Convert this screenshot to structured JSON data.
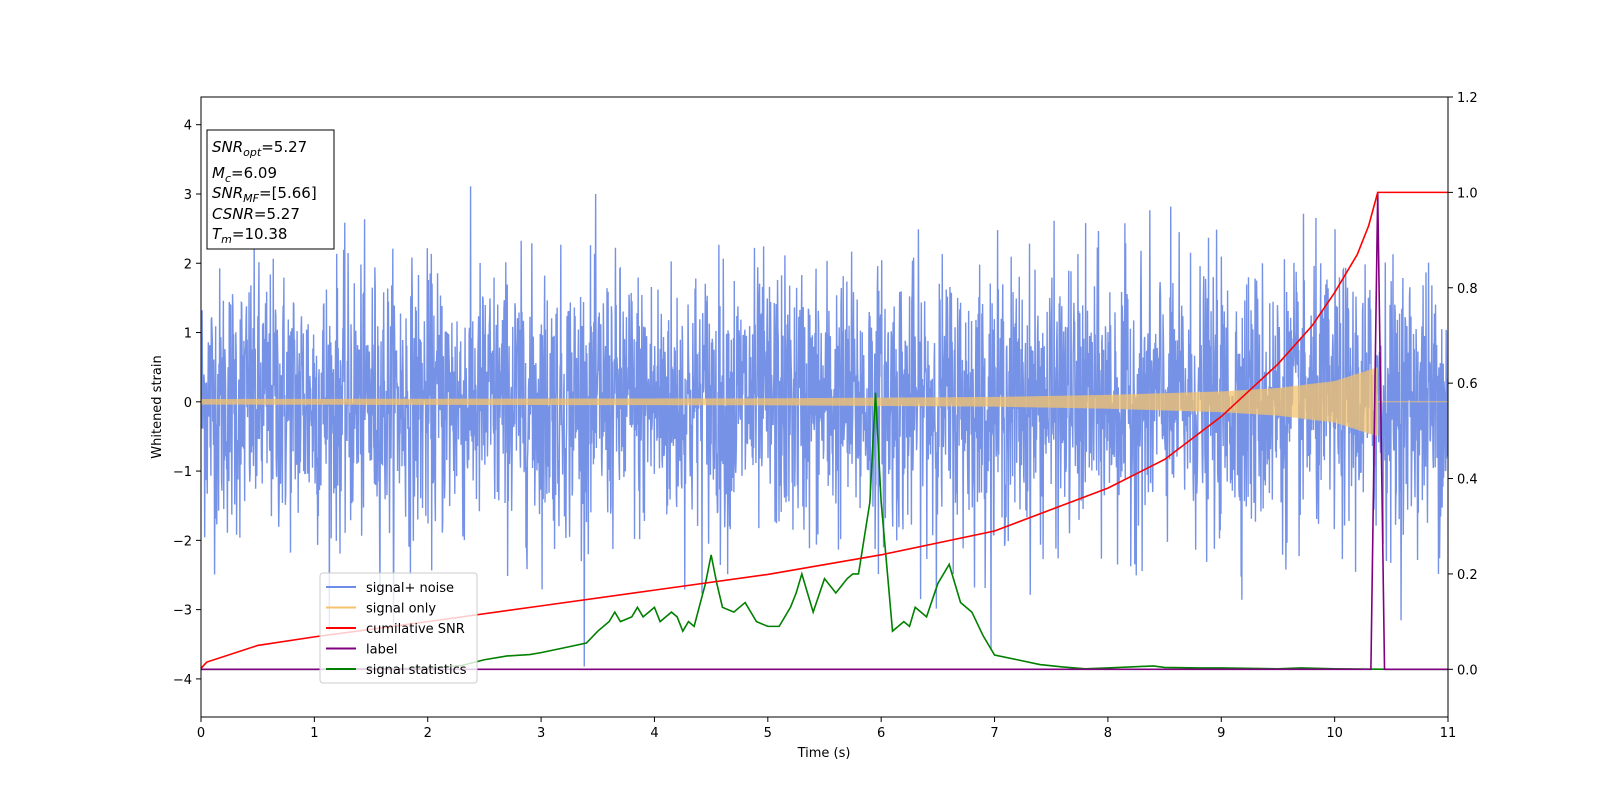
{
  "chart_data": {
    "type": "line",
    "xlabel": "Time (s)",
    "ylabel": "Whitened strain",
    "xlim": [
      0,
      11
    ],
    "ylim": [
      -4.55,
      4.4
    ],
    "y2lim": [
      -0.1,
      1.2
    ],
    "x_ticks": [
      0,
      1,
      2,
      3,
      4,
      5,
      6,
      7,
      8,
      9,
      10,
      11
    ],
    "y_ticks": [
      -4,
      -3,
      -2,
      -1,
      0,
      1,
      2,
      3,
      4
    ],
    "y2_ticks": [
      0.0,
      0.2,
      0.4,
      0.6,
      0.8,
      1.0,
      1.2
    ],
    "legend_position": "lower-left",
    "grid": false,
    "annotation": {
      "snr_opt": "5.27",
      "mc": "6.09",
      "snr_mf": "[5.66]",
      "csnr": "5.27",
      "tm": "10.38"
    },
    "series": [
      {
        "name": "signal+ noise",
        "color": "#6f8ce6",
        "axis": "left",
        "noise_std": 0.95,
        "x_range": [
          0,
          11
        ]
      },
      {
        "name": "signal only",
        "color": "#f5c36b",
        "axis": "left",
        "merger_time": 10.38,
        "envelope": [
          [
            0,
            0.04
          ],
          [
            5,
            0.05
          ],
          [
            7,
            0.07
          ],
          [
            8,
            0.1
          ],
          [
            9,
            0.15
          ],
          [
            9.5,
            0.2
          ],
          [
            10,
            0.3
          ],
          [
            10.38,
            0.5
          ]
        ]
      },
      {
        "name": "cumilative SNR",
        "color": "#ff0000",
        "axis": "right",
        "x": [
          0,
          0.05,
          0.5,
          1,
          2,
          3,
          4,
          5,
          6,
          7,
          8,
          8.5,
          9,
          9.5,
          9.8,
          10,
          10.2,
          10.3,
          10.38,
          10.5,
          11
        ],
        "y": [
          0.002,
          0.015,
          0.05,
          0.068,
          0.1,
          0.133,
          0.166,
          0.199,
          0.24,
          0.29,
          0.38,
          0.44,
          0.53,
          0.64,
          0.72,
          0.79,
          0.87,
          0.93,
          1.0,
          1.0,
          1.0
        ]
      },
      {
        "name": "label",
        "color": "#800080",
        "axis": "right",
        "x": [
          0,
          10.32,
          10.38,
          10.44,
          11
        ],
        "y": [
          0,
          0,
          1.0,
          0,
          0
        ]
      },
      {
        "name": "signal statistics",
        "color": "#008000",
        "axis": "right",
        "x": [
          0,
          0.5,
          1,
          1.5,
          2,
          2.3,
          2.5,
          2.7,
          2.9,
          3.0,
          3.2,
          3.4,
          3.5,
          3.6,
          3.65,
          3.7,
          3.8,
          3.85,
          3.9,
          3.95,
          4.0,
          4.05,
          4.1,
          4.15,
          4.2,
          4.25,
          4.3,
          4.35,
          4.45,
          4.5,
          4.55,
          4.6,
          4.7,
          4.75,
          4.8,
          4.9,
          5.0,
          5.1,
          5.2,
          5.25,
          5.3,
          5.35,
          5.4,
          5.5,
          5.6,
          5.7,
          5.75,
          5.8,
          5.9,
          5.95,
          6.0,
          6.1,
          6.2,
          6.25,
          6.3,
          6.4,
          6.5,
          6.6,
          6.65,
          6.7,
          6.8,
          6.9,
          7.0,
          7.2,
          7.4,
          7.6,
          7.8,
          8.0,
          8.2,
          8.4,
          8.5,
          8.8,
          9.0,
          9.5,
          9.7,
          10.0,
          10.5,
          11.0
        ],
        "y": [
          0.0,
          0.0,
          0.0,
          0.001,
          0.002,
          0.008,
          0.02,
          0.028,
          0.031,
          0.035,
          0.045,
          0.055,
          0.08,
          0.1,
          0.12,
          0.1,
          0.11,
          0.13,
          0.11,
          0.12,
          0.13,
          0.1,
          0.11,
          0.12,
          0.11,
          0.08,
          0.1,
          0.09,
          0.18,
          0.24,
          0.18,
          0.13,
          0.12,
          0.13,
          0.14,
          0.1,
          0.09,
          0.09,
          0.13,
          0.16,
          0.2,
          0.16,
          0.12,
          0.19,
          0.16,
          0.19,
          0.2,
          0.2,
          0.35,
          0.58,
          0.35,
          0.08,
          0.1,
          0.09,
          0.13,
          0.11,
          0.18,
          0.22,
          0.18,
          0.14,
          0.12,
          0.07,
          0.03,
          0.02,
          0.01,
          0.005,
          0.001,
          0.003,
          0.005,
          0.007,
          0.004,
          0.003,
          0.003,
          0.001,
          0.003,
          0.001,
          0.0,
          0.0
        ]
      }
    ]
  }
}
